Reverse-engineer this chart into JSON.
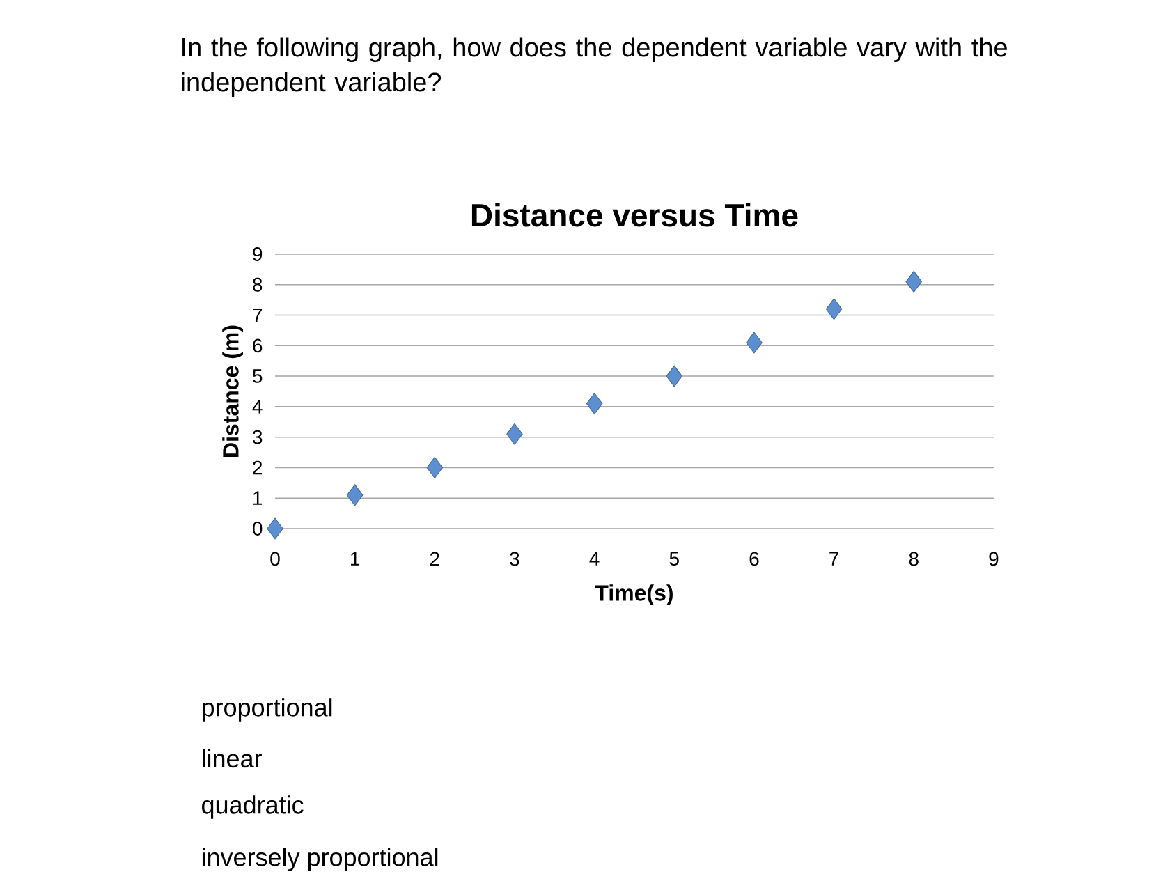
{
  "chart_data": {
    "type": "scatter",
    "title": "Distance versus Time",
    "xlabel": "Time(s)",
    "ylabel": "Distance (m)",
    "x": [
      0,
      1,
      2,
      3,
      4,
      5,
      6,
      7,
      8
    ],
    "series": [
      {
        "color": "#5b8fd0",
        "values": [
          0,
          1.1,
          2.0,
          3.1,
          4.1,
          5.0,
          6.1,
          7.2,
          8.1
        ]
      }
    ],
    "xlim": [
      0,
      9
    ],
    "ylim": [
      0,
      9
    ],
    "xticks": [
      0,
      1,
      2,
      3,
      4,
      5,
      6,
      7,
      8,
      9
    ],
    "yticks": [
      0,
      1,
      2,
      3,
      4,
      5,
      6,
      7,
      8,
      9
    ],
    "grid": "y",
    "marker": "diamond",
    "annotations": [
      "In the following graph, how does the dependent variable vary with the independent variable?",
      "proportional",
      "linear",
      "quadratic",
      "inversely proportional"
    ]
  }
}
